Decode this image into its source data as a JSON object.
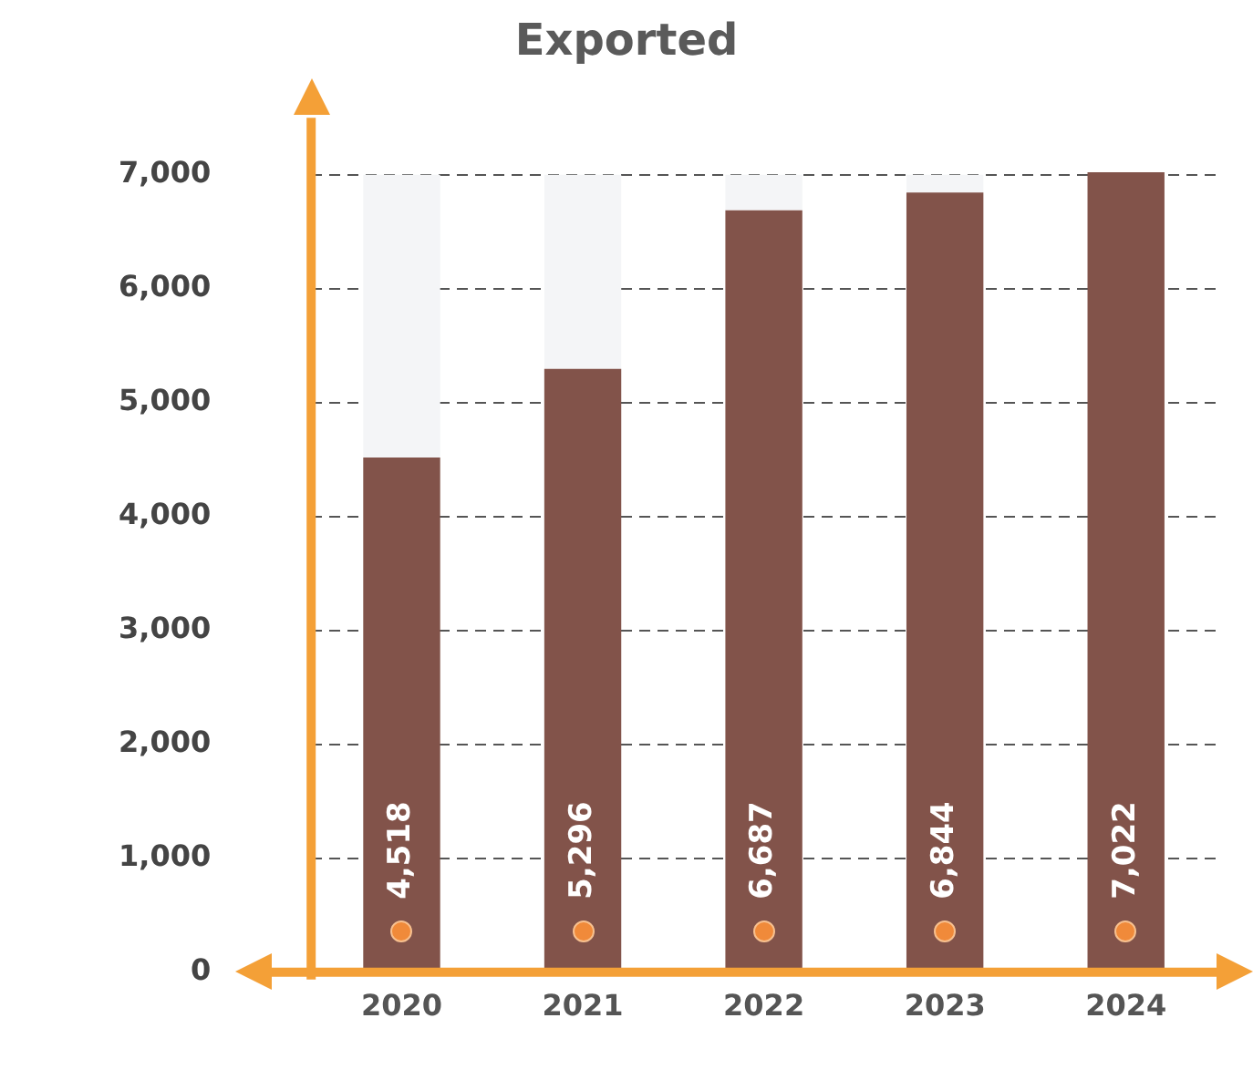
{
  "chart_data": {
    "type": "bar",
    "title": "Exported",
    "categories": [
      "2020",
      "2021",
      "2022",
      "2023",
      "2024"
    ],
    "series": [
      {
        "color": "#82534a",
        "values": [
          4518,
          5296,
          6687,
          6844,
          7022
        ],
        "value_labels": [
          "4,518",
          "5,296",
          "6,687",
          "6,844",
          "7,022"
        ]
      },
      {
        "color": "#f4f5f7",
        "values": [
          2482,
          1704,
          313,
          156,
          null
        ]
      }
    ],
    "stacked": true,
    "ylim": [
      0,
      7500
    ],
    "yticks": [
      {
        "value": 0,
        "label": "0"
      },
      {
        "value": 1000,
        "label": "1,000"
      },
      {
        "value": 2000,
        "label": "2,000"
      },
      {
        "value": 3000,
        "label": "3,000"
      },
      {
        "value": 4000,
        "label": "4,000"
      },
      {
        "value": 5000,
        "label": "5,000"
      },
      {
        "value": 6000,
        "label": "6,000"
      },
      {
        "value": 7000,
        "label": "7,000"
      }
    ],
    "grid": "y",
    "legend": false
  }
}
